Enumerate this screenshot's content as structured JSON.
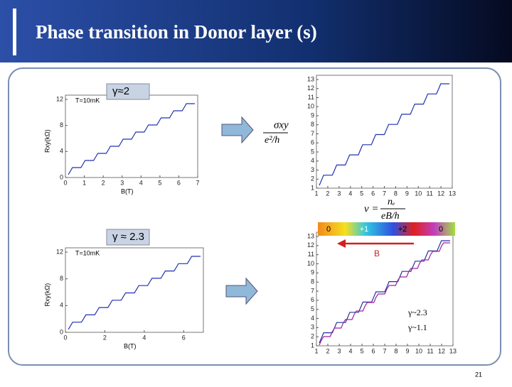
{
  "header": {
    "title": "Phase transition in Donor layer (s)"
  },
  "panels": [
    {
      "tag": "T=10mK",
      "gamma": "γ≈2",
      "xlabel": "B(T)",
      "ylabel": "Rxy(kΩ)",
      "xlim": [
        0,
        7
      ],
      "ylim": [
        0,
        12
      ],
      "xticks": [
        0,
        1,
        2,
        3,
        4,
        5,
        6,
        7
      ],
      "yticks": [
        0,
        4,
        8,
        12
      ]
    },
    {
      "xlim": [
        1,
        13
      ],
      "ylim": [
        1,
        13
      ],
      "xticks": [
        1,
        2,
        3,
        4,
        5,
        6,
        7,
        8,
        9,
        10,
        11,
        12,
        13
      ],
      "yticks": [
        1,
        2,
        3,
        4,
        5,
        6,
        7,
        8,
        9,
        10,
        11,
        12,
        13
      ]
    },
    {
      "tag": "T=10mK",
      "gamma": "γ ≈ 2.3",
      "xlabel": "B(T)",
      "ylabel": "Rxy(kΩ)",
      "xlim": [
        0,
        7
      ],
      "ylim": [
        0,
        12
      ],
      "xticks": [
        0,
        2,
        4,
        6
      ],
      "yticks": [
        0,
        4,
        8,
        12
      ]
    },
    {
      "xlim": [
        1,
        13
      ],
      "ylim": [
        1,
        13
      ],
      "xticks": [
        1,
        2,
        3,
        4,
        5,
        6,
        7,
        8,
        9,
        10,
        11,
        12,
        13
      ],
      "yticks": [
        1,
        2,
        3,
        4,
        5,
        6,
        7,
        8,
        9,
        10,
        11,
        12,
        13
      ],
      "colorbar": [
        "0",
        "+1",
        "+2",
        "0"
      ],
      "arrow_label": "B",
      "legend": [
        "γ~2.3",
        "γ~1.1"
      ]
    }
  ],
  "formulas": {
    "sigma": "σxy",
    "unit": "e²/h",
    "nu": "ν =",
    "ne": "nₑ",
    "eBh": "eB/h"
  },
  "page_number": "21"
}
